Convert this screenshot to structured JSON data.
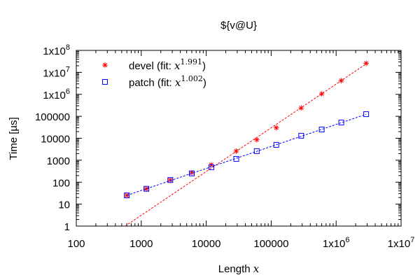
{
  "chart_data": {
    "type": "scatter",
    "title": "${v@U}",
    "xlabel": {
      "text": "Length ",
      "var": "x"
    },
    "ylabel": "Time [µs]",
    "xscale": "log",
    "yscale": "log",
    "xlim": [
      100,
      10000000
    ],
    "ylim": [
      1,
      100000000
    ],
    "grid": false,
    "legend_position": "top-left",
    "x_ticks": [
      {
        "value": 100,
        "label": "100"
      },
      {
        "value": 1000,
        "label": "1000"
      },
      {
        "value": 10000,
        "label": "10000"
      },
      {
        "value": 100000,
        "label": "100000"
      },
      {
        "value": 1000000,
        "label": "1x10",
        "exp": "6"
      },
      {
        "value": 10000000,
        "label": "1x10",
        "exp": "7"
      }
    ],
    "y_ticks": [
      {
        "value": 1,
        "label": "1"
      },
      {
        "value": 10,
        "label": "10"
      },
      {
        "value": 100,
        "label": "100"
      },
      {
        "value": 1000,
        "label": "1000"
      },
      {
        "value": 10000,
        "label": "10000"
      },
      {
        "value": 100000,
        "label": "100000"
      },
      {
        "value": 1000000,
        "label": "1x10",
        "exp": "6"
      },
      {
        "value": 10000000,
        "label": "1x10",
        "exp": "7"
      },
      {
        "value": 100000000,
        "label": "1x10",
        "exp": "8"
      }
    ],
    "series": [
      {
        "name": "devel (fit: ",
        "fit_var": "x",
        "fit_exp": "1.991",
        "name_suffix": ")",
        "color": "#ff0000",
        "marker": "star",
        "fit_coef": 3.31e-06,
        "points": [
          {
            "x": 600,
            "y": 25
          },
          {
            "x": 1200,
            "y": 50
          },
          {
            "x": 2800,
            "y": 125
          },
          {
            "x": 6000,
            "y": 270
          },
          {
            "x": 12000,
            "y": 620
          },
          {
            "x": 29000,
            "y": 2600
          },
          {
            "x": 60000,
            "y": 8500
          },
          {
            "x": 120000,
            "y": 30000
          },
          {
            "x": 290000,
            "y": 240000
          },
          {
            "x": 600000,
            "y": 1050000
          },
          {
            "x": 1200000,
            "y": 4200000
          },
          {
            "x": 2900000,
            "y": 26000000
          }
        ]
      },
      {
        "name": "patch (fit: ",
        "fit_var": "x",
        "fit_exp": "1.002",
        "name_suffix": ")",
        "color": "#0000ff",
        "marker": "square",
        "fit_coef": 0.0413,
        "points": [
          {
            "x": 600,
            "y": 25
          },
          {
            "x": 1200,
            "y": 50
          },
          {
            "x": 2800,
            "y": 125
          },
          {
            "x": 6000,
            "y": 250
          },
          {
            "x": 12000,
            "y": 480
          },
          {
            "x": 29000,
            "y": 1150
          },
          {
            "x": 60000,
            "y": 2600
          },
          {
            "x": 120000,
            "y": 5000
          },
          {
            "x": 290000,
            "y": 13000
          },
          {
            "x": 600000,
            "y": 25000
          },
          {
            "x": 1200000,
            "y": 52000
          },
          {
            "x": 2900000,
            "y": 125000
          }
        ]
      }
    ]
  }
}
